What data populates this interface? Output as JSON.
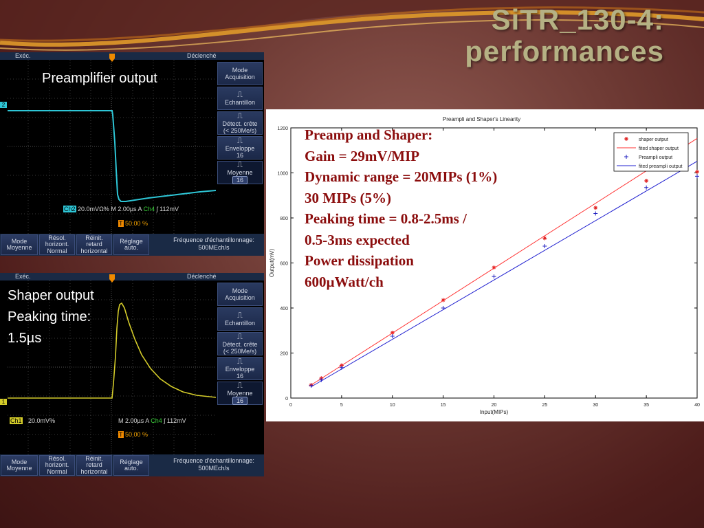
{
  "slide": {
    "title_line1": "SiTR_130-4:",
    "title_line2": "performances",
    "colors": {
      "title": "#b5b184",
      "spec_text": "#8b0d0d",
      "swoosh": "#d9871f"
    }
  },
  "scope_top": {
    "exec_label": "Exéc.",
    "decl_label": "Déclenché",
    "side_buttons": [
      {
        "icon": "",
        "line1": "Mode",
        "line2": "Acquisition"
      },
      {
        "icon": "sample-icon",
        "line1": "Echantillon",
        "line2": ""
      },
      {
        "icon": "peak-detect-icon",
        "line1": "Détect. crête",
        "line2": "(< 250Me/s)"
      },
      {
        "icon": "envelope-icon",
        "line1": "Enveloppe",
        "line2": "16"
      },
      {
        "icon": "average-icon",
        "line1": "Moyenne",
        "line2": "16"
      }
    ],
    "bottom_buttons": [
      {
        "line1": "Mode",
        "line2": "Moyenne",
        "line3": ""
      },
      {
        "line1": "Résol.",
        "line2": "horizont.",
        "line3": "Normal"
      },
      {
        "line1": "Réinit.",
        "line2": "retard",
        "line3": "horizontal"
      },
      {
        "line1": "Réglage",
        "line2": "auto.",
        "line3": ""
      }
    ],
    "freq_line1": "Fréquence d'échantillonnage:",
    "freq_line2": "500MEch/s",
    "channel_label": "Ch2",
    "channel_marker": "2",
    "readout_volts": "20.0mV",
    "readout_omega": "Ω",
    "readout_percent": "%",
    "readout_time": "M 2.00µs",
    "readout_a": "A",
    "readout_ch4": "Ch4",
    "readout_trig": "ʃ",
    "readout_mv": "112mV",
    "trig_symbol": "T",
    "trig_pos": "50.00 %",
    "label": "Preamplifier output",
    "trace_color": "#2ec6d6"
  },
  "scope_bottom": {
    "exec_label": "Exéc.",
    "decl_label": "Déclenché",
    "side_buttons": [
      {
        "icon": "",
        "line1": "Mode",
        "line2": "Acquisition"
      },
      {
        "icon": "sample-icon",
        "line1": "Echantillon",
        "line2": ""
      },
      {
        "icon": "peak-detect-icon",
        "line1": "Détect. crête",
        "line2": "(< 250Me/s)"
      },
      {
        "icon": "envelope-icon",
        "line1": "Enveloppe",
        "line2": "16"
      },
      {
        "icon": "average-icon",
        "line1": "Moyenne",
        "line2": "16"
      }
    ],
    "bottom_buttons": [
      {
        "line1": "Mode",
        "line2": "Moyenne",
        "line3": ""
      },
      {
        "line1": "Résol.",
        "line2": "horizont.",
        "line3": "Normal"
      },
      {
        "line1": "Réinit.",
        "line2": "retard",
        "line3": "horizontal"
      },
      {
        "line1": "Réglage",
        "line2": "auto.",
        "line3": ""
      }
    ],
    "freq_line1": "Fréquence d'échantillonnage:",
    "freq_line2": "500MEch/s",
    "channel_label": "Ch1",
    "channel_marker": "1",
    "readout_volts": "20.0mV",
    "readout_omega": "",
    "readout_percent": "%",
    "readout_time": "M 2.00µs",
    "readout_a": "A",
    "readout_ch4": "Ch4",
    "readout_trig": "ʃ",
    "readout_mv": "112mV",
    "trig_symbol": "T",
    "trig_pos": "50.00 %",
    "label_line1": "Shaper output",
    "label_line2": "Peaking time:",
    "label_line3": "1.5µs",
    "trace_color": "#d4cc2a"
  },
  "spec_lines": [
    "Preamp and Shaper:",
    "Gain = 29mV/MIP",
    "Dynamic range = 20MIPs  (1%)",
    "30 MIPs  (5%)",
    "Peaking time = 0.8-2.5ms /",
    "0.5-3ms expected",
    "Power dissipation",
    "600µWatt/ch"
  ],
  "chart_data": {
    "type": "scatter",
    "title": "Preampli and Shaper's Linearity",
    "xlabel": "Input(MIPs)",
    "ylabel": "Output(mV)",
    "xlim": [
      0,
      40
    ],
    "ylim": [
      0,
      1200
    ],
    "xticks": [
      0,
      5,
      10,
      15,
      20,
      25,
      30,
      35,
      40
    ],
    "yticks": [
      0,
      200,
      400,
      600,
      800,
      1000,
      1200
    ],
    "legend_position": "top-right",
    "legend": [
      "shaper output",
      "fited shaper output",
      "Preampli output",
      "fited preampli output"
    ],
    "series": [
      {
        "name": "shaper output",
        "marker": "*",
        "color": "#e02020",
        "x": [
          2,
          3,
          5,
          10,
          15,
          20,
          25,
          30,
          35,
          40
        ],
        "y": [
          58,
          88,
          145,
          290,
          435,
          580,
          710,
          845,
          965,
          1005
        ]
      },
      {
        "name": "fited shaper output",
        "line": true,
        "color": "#ff3030",
        "x": [
          2,
          41
        ],
        "y": [
          58,
          1182
        ]
      },
      {
        "name": "Preampli output",
        "marker": "+",
        "color": "#2020c0",
        "x": [
          2,
          3,
          5,
          10,
          15,
          20,
          25,
          30,
          35,
          40
        ],
        "y": [
          55,
          80,
          135,
          275,
          400,
          540,
          675,
          820,
          935,
          985
        ]
      },
      {
        "name": "fited preampli output",
        "line": true,
        "color": "#2020d0",
        "x": [
          2,
          41
        ],
        "y": [
          50,
          1078
        ]
      }
    ]
  }
}
